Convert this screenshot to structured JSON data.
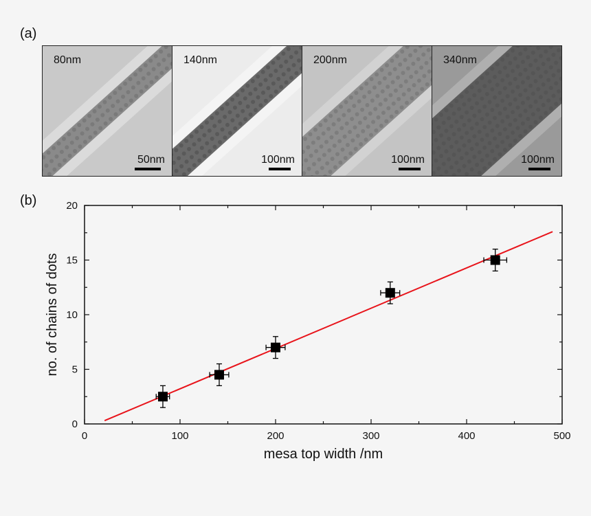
{
  "panels": {
    "a_label": "(a)",
    "b_label": "(b)"
  },
  "micrographs": [
    {
      "width_label": "80nm",
      "scale_label": "50nm",
      "tone": "light",
      "bar_fraction": 0.2
    },
    {
      "width_label": "140nm",
      "scale_label": "100nm",
      "tone": "bright",
      "bar_fraction": 0.17
    },
    {
      "width_label": "200nm",
      "scale_label": "100nm",
      "tone": "mid",
      "bar_fraction": 0.17
    },
    {
      "width_label": "340nm",
      "scale_label": "100nm",
      "tone": "dark",
      "bar_fraction": 0.17
    }
  ],
  "chart_data": {
    "type": "scatter",
    "title": "",
    "xlabel": "mesa top width /nm",
    "ylabel": "no. of chains of dots",
    "xlim": [
      0,
      500
    ],
    "ylim": [
      0,
      20
    ],
    "xticks": [
      0,
      100,
      200,
      300,
      400,
      500
    ],
    "yticks": [
      0,
      5,
      10,
      15,
      20
    ],
    "grid": false,
    "points": [
      {
        "x": 82,
        "y": 2.5,
        "xerr": 7,
        "yerr": 1
      },
      {
        "x": 141,
        "y": 4.5,
        "xerr": 10,
        "yerr": 1
      },
      {
        "x": 200,
        "y": 7,
        "xerr": 10,
        "yerr": 1
      },
      {
        "x": 320,
        "y": 12,
        "xerr": 10,
        "yerr": 1
      },
      {
        "x": 430,
        "y": 15,
        "xerr": 12,
        "yerr": 1
      }
    ],
    "fit_line": {
      "x": [
        21,
        490
      ],
      "y": [
        0.3,
        17.6
      ],
      "color": "#e8141b"
    },
    "marker_color": "#000000"
  }
}
